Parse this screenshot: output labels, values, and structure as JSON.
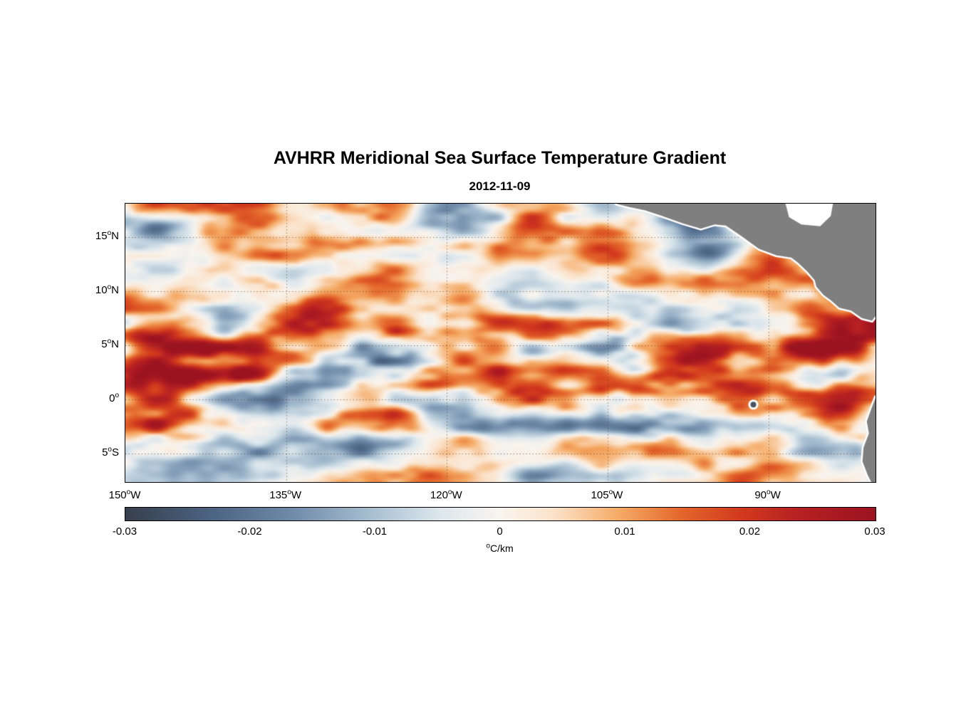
{
  "page": {
    "background": "#ffffff"
  },
  "chart_data": {
    "type": "heatmap",
    "title": "AVHRR Meridional Sea Surface Temperature Gradient",
    "subtitle": "2012-11-09",
    "units": "°C/km",
    "extent": {
      "lon_min": -150,
      "lon_max": -80,
      "lat_min": -7.6,
      "lat_max": 18.1
    },
    "x_axis": {
      "ticks": [
        {
          "lon": -150,
          "label": "150°W"
        },
        {
          "lon": -135,
          "label": "135°W"
        },
        {
          "lon": -120,
          "label": "120°W"
        },
        {
          "lon": -105,
          "label": "105°W"
        },
        {
          "lon": -90,
          "label": "90°W"
        }
      ]
    },
    "y_axis": {
      "ticks": [
        {
          "lat": 15,
          "label": "15°N"
        },
        {
          "lat": 10,
          "label": "10°N"
        },
        {
          "lat": 5,
          "label": "5°N"
        },
        {
          "lat": 0,
          "label": "0°"
        },
        {
          "lat": -5,
          "label": "5°S"
        }
      ]
    },
    "grid": {
      "x_lines": [
        -135,
        -120,
        -105,
        -90
      ],
      "y_lines": [
        15,
        10,
        5,
        0,
        -5
      ],
      "style": "dotted",
      "color": "rgba(95,60,35,0.6)"
    },
    "colorbar": {
      "min": -0.03,
      "max": 0.03,
      "label": "°C/km",
      "ticks": [
        {
          "v": -0.03,
          "label": "-0.03"
        },
        {
          "v": -0.02,
          "label": "-0.02"
        },
        {
          "v": -0.01,
          "label": "-0.01"
        },
        {
          "v": 0,
          "label": "0"
        },
        {
          "v": 0.01,
          "label": "0.01"
        },
        {
          "v": 0.02,
          "label": "0.02"
        },
        {
          "v": 0.03,
          "label": "0.03"
        }
      ],
      "stops": [
        [
          0,
          "#363f4c"
        ],
        [
          0.12,
          "#4d6585"
        ],
        [
          0.22,
          "#6e89a8"
        ],
        [
          0.33,
          "#a9c0d2"
        ],
        [
          0.42,
          "#dde7ed"
        ],
        [
          0.5,
          "#f9f4ee"
        ],
        [
          0.57,
          "#fbe3cb"
        ],
        [
          0.66,
          "#f5a963"
        ],
        [
          0.74,
          "#e4672c"
        ],
        [
          0.82,
          "#d23a1d"
        ],
        [
          0.9,
          "#b52023"
        ],
        [
          1,
          "#9c1320"
        ]
      ]
    },
    "field": {
      "summary": "Zonally elongated mesoscale SST gradient fronts over the eastern tropical Pacific: strong positive (red) bands near 6°N in the west and 1-3°N in the east, negative (blue-gray) patches near 13-17°N and 3-6°S, a strong negative eddy near 95°W 13.5°N, positive streaks near 11-12°N east of 110°W and along the Ecuador/Peru coast.",
      "base": 0.0028,
      "bands": [
        {
          "type": "gauss_lat",
          "center": 6.5,
          "sigma": 1.25,
          "amp": 0.011,
          "lon_ramp": [
            -100,
            -150
          ],
          "floor": 0.45,
          "meander": 1
        },
        {
          "type": "gauss_lat",
          "center": 1.9,
          "sigma": 1.6,
          "amp": 0.013,
          "lon_ramp": [
            -140,
            -95
          ],
          "floor": 0.5,
          "meander": 1
        },
        {
          "type": "gauss_lat",
          "center": 11.7,
          "sigma": 1.1,
          "amp": 0.009,
          "lon_ramp": [
            -112,
            -98
          ],
          "floor": 0,
          "meander": 0.6
        },
        {
          "type": "gauss_lat",
          "center": 16.3,
          "sigma": 2.4,
          "amp": -0.0055
        },
        {
          "type": "gauss_lat",
          "center": -4.6,
          "sigma": 2.2,
          "amp": -0.0045
        },
        {
          "type": "blob",
          "lon": -95.3,
          "slon": 1.6,
          "lat": 13.5,
          "slat": 1.0,
          "amp": -0.02
        },
        {
          "type": "blob",
          "lon": -83.5,
          "slon": 2.6,
          "lat": -1.8,
          "slat": 1.6,
          "amp": 0.012
        }
      ],
      "noise_boosts": [
        {
          "center": 3.5,
          "sigma": 3.5,
          "gain": 1.3
        },
        {
          "center": 16.5,
          "sigma": 2.6,
          "gain": 0.55
        },
        {
          "center": -4.2,
          "sigma": 2.4,
          "gain": 0.4
        }
      ]
    },
    "land": {
      "fill": "#7f7f7f",
      "coast_halo": "#ffffff",
      "polygons": [
        [
          [
            -104.8,
            19
          ],
          [
            -104.2,
            18
          ],
          [
            -103,
            17.7
          ],
          [
            -101.5,
            17.4
          ],
          [
            -100,
            16.9
          ],
          [
            -98,
            16.2
          ],
          [
            -96.3,
            15.7
          ],
          [
            -95,
            16.1
          ],
          [
            -94,
            16
          ],
          [
            -92.5,
            15
          ],
          [
            -90.9,
            13.85
          ],
          [
            -89.3,
            13.25
          ],
          [
            -87.9,
            13.05
          ],
          [
            -87.3,
            12.6
          ],
          [
            -86.4,
            11.75
          ],
          [
            -85.75,
            11
          ],
          [
            -85.6,
            10.4
          ],
          [
            -84.9,
            9.6
          ],
          [
            -84.2,
            9.1
          ],
          [
            -83.4,
            8.4
          ],
          [
            -82.3,
            8.15
          ],
          [
            -81.3,
            7.45
          ],
          [
            -80.3,
            7.2
          ],
          [
            -79.6,
            8.1
          ],
          [
            -78.2,
            8
          ],
          [
            -78,
            19
          ],
          [
            -83.9,
            19
          ],
          [
            -84.25,
            17
          ],
          [
            -85.2,
            16.1
          ],
          [
            -86.9,
            16.25
          ],
          [
            -88,
            16.9
          ],
          [
            -88.55,
            19
          ]
        ],
        [
          [
            -78,
            1.5
          ],
          [
            -80.05,
            0.3
          ],
          [
            -80.5,
            -0.9
          ],
          [
            -80.9,
            -2
          ],
          [
            -80.7,
            -3.1
          ],
          [
            -81.2,
            -4.4
          ],
          [
            -81.3,
            -5.7
          ],
          [
            -80.8,
            -7
          ],
          [
            -80.3,
            -8
          ],
          [
            -79.3,
            -9
          ],
          [
            -78,
            -9
          ]
        ]
      ],
      "water_notch": [
        [
          -83.9,
          19
        ],
        [
          -84.25,
          17
        ],
        [
          -85.2,
          16.1
        ],
        [
          -86.9,
          16.25
        ],
        [
          -88,
          16.9
        ],
        [
          -88.55,
          19
        ]
      ],
      "islands": [
        {
          "lon": -91.4,
          "lat": -0.45,
          "r": 4
        }
      ]
    },
    "render": {
      "seed": 11,
      "nx": 264,
      "ny": 98,
      "amp": 0.019,
      "octaves": [
        [
          7.0,
          2.3,
          0.55
        ],
        [
          3.2,
          1.2,
          0.3
        ],
        [
          1.6,
          0.7,
          0.15
        ]
      ]
    }
  }
}
